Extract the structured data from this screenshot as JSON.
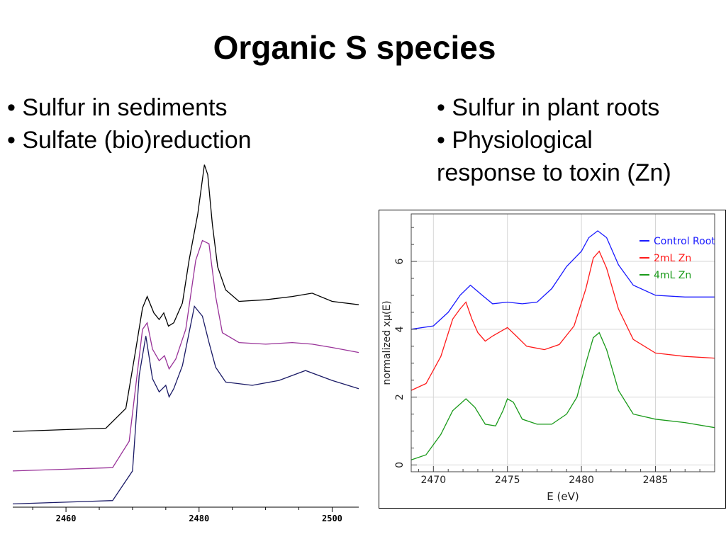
{
  "slide": {
    "title": "Organic S species",
    "left_bullets": [
      "• Sulfur in sediments",
      "• Sulfate (bio)reduction"
    ],
    "right_bullets": [
      "• Sulfur in plant roots",
      "• Physiological",
      "response to toxin (Zn)"
    ]
  },
  "chart_data": [
    {
      "type": "line",
      "title": "",
      "xlabel": "",
      "ylabel": "",
      "xlim": [
        2452,
        2504
      ],
      "ylim": [
        0,
        10.5
      ],
      "xticks": [
        2460,
        2480,
        2500
      ],
      "xtick_labels": [
        "2460",
        "2480",
        "2500"
      ],
      "grid": false,
      "legend": "none",
      "series": [
        {
          "color": "#000000",
          "x": [
            2452,
            2466,
            2469,
            2470.5,
            2471.5,
            2472.2,
            2473.2,
            2474.0,
            2474.7,
            2475.4,
            2476.2,
            2477.5,
            2478.5,
            2479.8,
            2480.8,
            2481.3,
            2482.0,
            2482.8,
            2484.0,
            2486,
            2490,
            2494,
            2497,
            2500,
            2504
          ],
          "y": [
            2.3,
            2.4,
            3.0,
            4.8,
            6.05,
            6.4,
            5.9,
            5.7,
            5.9,
            5.5,
            5.6,
            6.2,
            7.5,
            8.9,
            10.4,
            10.1,
            8.6,
            7.3,
            6.6,
            6.25,
            6.3,
            6.4,
            6.5,
            6.25,
            6.15
          ]
        },
        {
          "color": "#993399",
          "x": [
            2452,
            2467,
            2469.5,
            2470.5,
            2471.5,
            2472.2,
            2473.0,
            2474.0,
            2474.8,
            2475.5,
            2476.5,
            2478.0,
            2479.5,
            2480.5,
            2481.5,
            2482.5,
            2483.5,
            2486,
            2490,
            2494,
            2497,
            2500,
            2504
          ],
          "y": [
            1.1,
            1.2,
            2.0,
            3.7,
            5.4,
            5.6,
            4.8,
            4.45,
            4.6,
            4.2,
            4.5,
            5.4,
            7.5,
            8.1,
            8.0,
            6.4,
            5.3,
            5.0,
            4.95,
            5.0,
            4.95,
            4.85,
            4.7
          ]
        },
        {
          "color": "#1a1a66",
          "x": [
            2452,
            2467,
            2470,
            2471,
            2472.0,
            2473.0,
            2474.0,
            2475.0,
            2475.5,
            2476.2,
            2477.5,
            2479.3,
            2480.5,
            2481.5,
            2482.5,
            2484.0,
            2488,
            2492,
            2496,
            2500,
            2504
          ],
          "y": [
            0.1,
            0.2,
            1.1,
            4.0,
            5.2,
            3.9,
            3.5,
            3.7,
            3.35,
            3.6,
            4.3,
            6.1,
            5.8,
            5.0,
            4.25,
            3.8,
            3.7,
            3.85,
            4.15,
            3.85,
            3.6
          ]
        }
      ]
    },
    {
      "type": "line",
      "title": "",
      "xlabel": "E (eV)",
      "ylabel": "normalized xμ(E)",
      "xlim": [
        2468.5,
        2489
      ],
      "ylim": [
        -0.2,
        7.4
      ],
      "xticks": [
        2470,
        2475,
        2480,
        2485
      ],
      "yticks": [
        0,
        2,
        4,
        6
      ],
      "grid": true,
      "legend": "top-right",
      "series": [
        {
          "name": "Control Root",
          "color": "#1a1aff",
          "x": [
            2468.5,
            2470.0,
            2471.0,
            2471.8,
            2472.5,
            2473.3,
            2474.0,
            2475.0,
            2476.0,
            2477.0,
            2478.0,
            2479.0,
            2480.0,
            2480.5,
            2481.1,
            2481.7,
            2482.5,
            2483.5,
            2485.0,
            2487.0,
            2489.0
          ],
          "y": [
            4.0,
            4.1,
            4.5,
            5.0,
            5.3,
            5.0,
            4.75,
            4.8,
            4.75,
            4.8,
            5.2,
            5.85,
            6.3,
            6.7,
            6.9,
            6.7,
            5.9,
            5.3,
            5.0,
            4.95,
            4.95
          ]
        },
        {
          "name": "2mL Zn",
          "color": "#ff1a1a",
          "x": [
            2468.5,
            2469.5,
            2470.5,
            2471.3,
            2471.8,
            2472.2,
            2472.6,
            2473.0,
            2473.5,
            2474.0,
            2474.6,
            2475.0,
            2475.6,
            2476.3,
            2477.5,
            2478.5,
            2479.5,
            2480.3,
            2480.8,
            2481.2,
            2481.7,
            2482.5,
            2483.5,
            2485.0,
            2487.0,
            2489.0
          ],
          "y": [
            2.2,
            2.4,
            3.2,
            4.3,
            4.6,
            4.8,
            4.3,
            3.9,
            3.65,
            3.8,
            3.95,
            4.05,
            3.8,
            3.5,
            3.4,
            3.55,
            4.1,
            5.2,
            6.1,
            6.3,
            5.8,
            4.6,
            3.7,
            3.3,
            3.2,
            3.15
          ]
        },
        {
          "name": "4mL Zn",
          "color": "#1a9a1a",
          "x": [
            2468.5,
            2469.5,
            2470.5,
            2471.3,
            2472.2,
            2472.8,
            2473.5,
            2474.2,
            2474.7,
            2475.0,
            2475.4,
            2476.0,
            2477.0,
            2478.0,
            2479.0,
            2479.7,
            2480.3,
            2480.8,
            2481.2,
            2481.7,
            2482.5,
            2483.5,
            2485.0,
            2487.0,
            2489.0
          ],
          "y": [
            0.15,
            0.3,
            0.9,
            1.6,
            1.95,
            1.7,
            1.2,
            1.15,
            1.6,
            1.95,
            1.85,
            1.35,
            1.2,
            1.2,
            1.5,
            2.0,
            3.0,
            3.75,
            3.9,
            3.4,
            2.2,
            1.5,
            1.35,
            1.25,
            1.1
          ]
        }
      ]
    }
  ]
}
